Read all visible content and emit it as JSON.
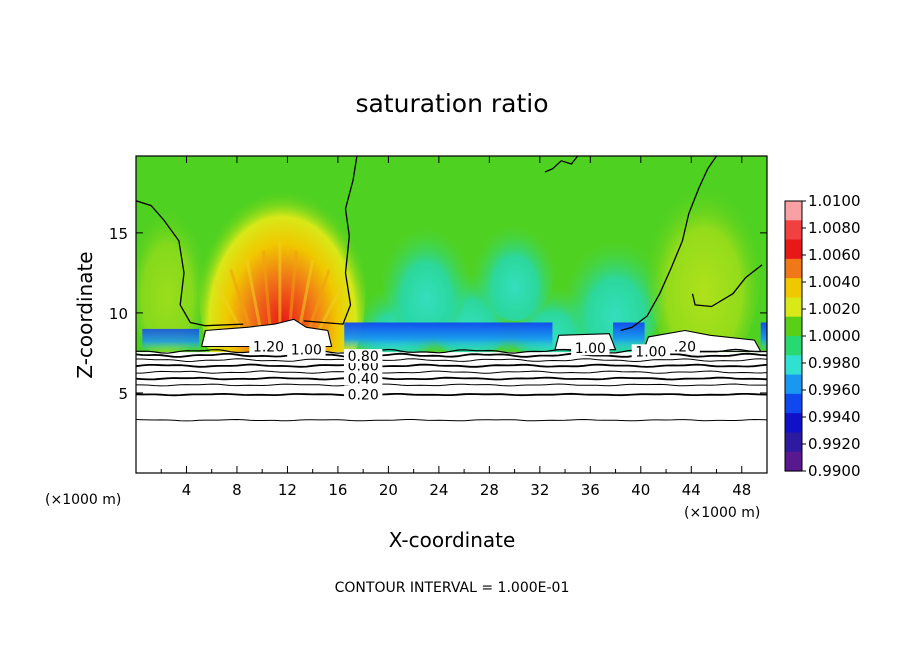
{
  "chart_data": {
    "type": "heatmap",
    "title": "saturation ratio",
    "xlabel": "X-coordinate",
    "ylabel": "Z-coordinate",
    "x_unit": "(×1000 m)",
    "y_unit": "(×1000 m)",
    "xlim": [
      0,
      50
    ],
    "ylim": [
      0,
      19.8
    ],
    "x_ticks": [
      4,
      8,
      12,
      16,
      20,
      24,
      28,
      32,
      36,
      40,
      44,
      48
    ],
    "y_ticks": [
      5,
      10,
      15
    ],
    "footer": "CONTOUR INTERVAL = 1.000E-01",
    "colorbar": {
      "labels": [
        "1.0100",
        "1.0080",
        "1.0060",
        "1.0040",
        "1.0020",
        "1.0000",
        "0.9980",
        "0.9960",
        "0.9940",
        "0.9920",
        "0.9900"
      ],
      "colors": [
        "#f8a0a4",
        "#f04040",
        "#e81818",
        "#f07818",
        "#f0c800",
        "#d8e818",
        "#58d018",
        "#28d870",
        "#30e0d0",
        "#1898f0",
        "#1048f0",
        "#1010c8",
        "#2c1aa0",
        "#581890"
      ]
    },
    "contour_labels": [
      {
        "text": "0.20",
        "x": 18,
        "y": 4.9
      },
      {
        "text": "0.40",
        "x": 18,
        "y": 5.9
      },
      {
        "text": "0.60",
        "x": 18,
        "y": 6.7
      },
      {
        "text": "0.80",
        "x": 18,
        "y": 7.3
      },
      {
        "text": "1.20",
        "x": 10.5,
        "y": 7.9
      },
      {
        "text": "1.00",
        "x": 13.5,
        "y": 7.7
      },
      {
        "text": "1.00",
        "x": 36,
        "y": 7.8
      },
      {
        "text": "1.00",
        "x": 40.8,
        "y": 7.6
      },
      {
        "text": ".20",
        "x": 43.5,
        "y": 7.9
      }
    ]
  }
}
